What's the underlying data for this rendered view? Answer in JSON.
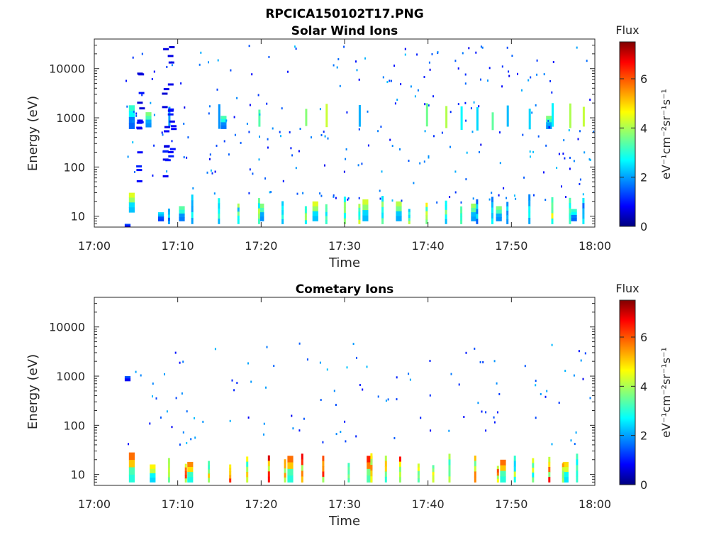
{
  "figure": {
    "title": "RPCICA150102T17.PNG"
  },
  "colormap": [
    "#00007f",
    "#0000ff",
    "#007fff",
    "#00ffff",
    "#7fff7f",
    "#ffff00",
    "#ff7f00",
    "#ff0000",
    "#7f0000"
  ],
  "chart_data": [
    {
      "type": "heatmap",
      "title": "Solar Wind Ions",
      "xlabel": "Time",
      "ylabel": "Energy (eV)",
      "x_range": [
        "17:00",
        "18:00"
      ],
      "x_ticks": [
        "17:00",
        "17:10",
        "17:20",
        "17:30",
        "17:40",
        "17:50",
        "18:00"
      ],
      "y_scale": "log",
      "y_range": [
        6,
        40000
      ],
      "y_ticks": [
        "10",
        "100",
        "1000",
        "10000"
      ],
      "colorbar": {
        "title": "Flux",
        "label": "eV⁻¹cm⁻²sr⁻¹s⁻¹",
        "range": [
          0,
          7.5
        ],
        "ticks": [
          "0",
          "2",
          "4",
          "6"
        ]
      },
      "bands": [
        {
          "t": 4.0,
          "e_lo": 6,
          "e_hi": 7,
          "v": 1.5
        },
        {
          "t": 4.5,
          "e_lo": 12,
          "e_hi": 30,
          "v": 4.5
        },
        {
          "t": 4.5,
          "e_lo": 600,
          "e_hi": 1800,
          "v": 3.2
        },
        {
          "t": 6.5,
          "e_lo": 650,
          "e_hi": 1300,
          "v": 3.8
        },
        {
          "t": 8.0,
          "e_lo": 8,
          "e_hi": 12,
          "v": 2.6
        },
        {
          "t": 10.5,
          "e_lo": 8,
          "e_hi": 16,
          "v": 3.5
        },
        {
          "t": 15.5,
          "e_lo": 600,
          "e_hi": 1100,
          "v": 3.4
        },
        {
          "t": 20.0,
          "e_lo": 8,
          "e_hi": 18,
          "v": 3.8
        },
        {
          "t": 26.5,
          "e_lo": 8,
          "e_hi": 20,
          "v": 4.5
        },
        {
          "t": 32.5,
          "e_lo": 8,
          "e_hi": 22,
          "v": 4.4
        },
        {
          "t": 36.5,
          "e_lo": 8,
          "e_hi": 20,
          "v": 4.2
        },
        {
          "t": 45.5,
          "e_lo": 8,
          "e_hi": 18,
          "v": 4.0
        },
        {
          "t": 48.5,
          "e_lo": 8,
          "e_hi": 16,
          "v": 3.8
        },
        {
          "t": 54.5,
          "e_lo": 600,
          "e_hi": 1100,
          "v": 3.8
        },
        {
          "t": 57.5,
          "e_lo": 8,
          "e_hi": 14,
          "v": 3.2
        }
      ]
    },
    {
      "type": "heatmap",
      "title": "Cometary Ions",
      "xlabel": "Time",
      "ylabel": "Energy (eV)",
      "x_range": [
        "17:00",
        "18:00"
      ],
      "x_ticks": [
        "17:00",
        "17:10",
        "17:20",
        "17:30",
        "17:40",
        "17:50",
        "18:00"
      ],
      "y_scale": "log",
      "y_range": [
        6,
        40000
      ],
      "y_ticks": [
        "10",
        "100",
        "1000",
        "10000"
      ],
      "colorbar": {
        "title": "Flux",
        "label": "eV⁻¹cm⁻²sr⁻¹s⁻¹",
        "range": [
          0,
          7.5
        ],
        "ticks": [
          "0",
          "2",
          "4",
          "6"
        ]
      },
      "bands": [
        {
          "t": 4.5,
          "e_lo": 7,
          "e_hi": 28,
          "v": 5.8
        },
        {
          "t": 4.0,
          "e_lo": 800,
          "e_hi": 1000,
          "v": 1.6
        },
        {
          "t": 7.0,
          "e_lo": 7,
          "e_hi": 16,
          "v": 4.8
        },
        {
          "t": 11.5,
          "e_lo": 7,
          "e_hi": 18,
          "v": 5.6
        },
        {
          "t": 23.5,
          "e_lo": 7,
          "e_hi": 24,
          "v": 5.8
        },
        {
          "t": 33.0,
          "e_lo": 7,
          "e_hi": 24,
          "v": 6.4
        },
        {
          "t": 49.0,
          "e_lo": 7,
          "e_hi": 20,
          "v": 5.8
        },
        {
          "t": 56.5,
          "e_lo": 7,
          "e_hi": 18,
          "v": 5.0
        }
      ]
    }
  ]
}
